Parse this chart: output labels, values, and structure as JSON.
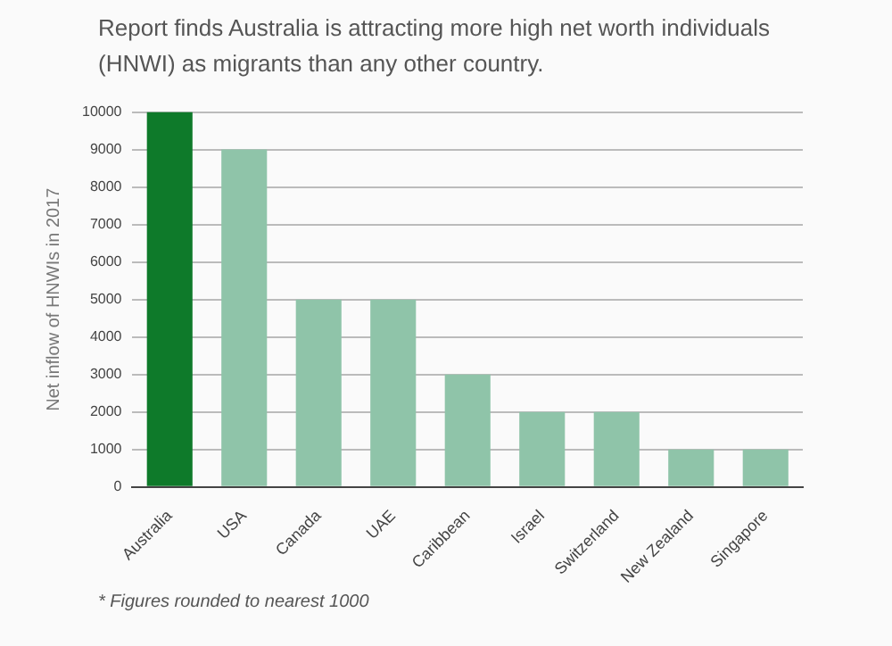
{
  "chart_data": {
    "type": "bar",
    "title": "Report finds Australia is attracting more high net worth individuals (HNWI) as migrants than any other country.",
    "ylabel": "Net inflow of HNWIs in 2017",
    "categories": [
      "Australia",
      "USA",
      "Canada",
      "UAE",
      "Caribbean",
      "Israel",
      "Switzerland",
      "New Zealand",
      "Singapore"
    ],
    "values": [
      10000,
      9000,
      5000,
      5000,
      3000,
      2000,
      2000,
      1000,
      1000
    ],
    "colors": [
      "#0e7a2a",
      "#8fc4a9",
      "#8fc4a9",
      "#8fc4a9",
      "#8fc4a9",
      "#8fc4a9",
      "#8fc4a9",
      "#8fc4a9",
      "#8fc4a9"
    ],
    "ylim": [
      0,
      10000
    ],
    "yticks": [
      0,
      1000,
      2000,
      3000,
      4000,
      5000,
      6000,
      7000,
      8000,
      9000,
      10000
    ],
    "grid": "y",
    "legend": false,
    "annotations": [
      "* Figures rounded to nearest 1000"
    ]
  }
}
